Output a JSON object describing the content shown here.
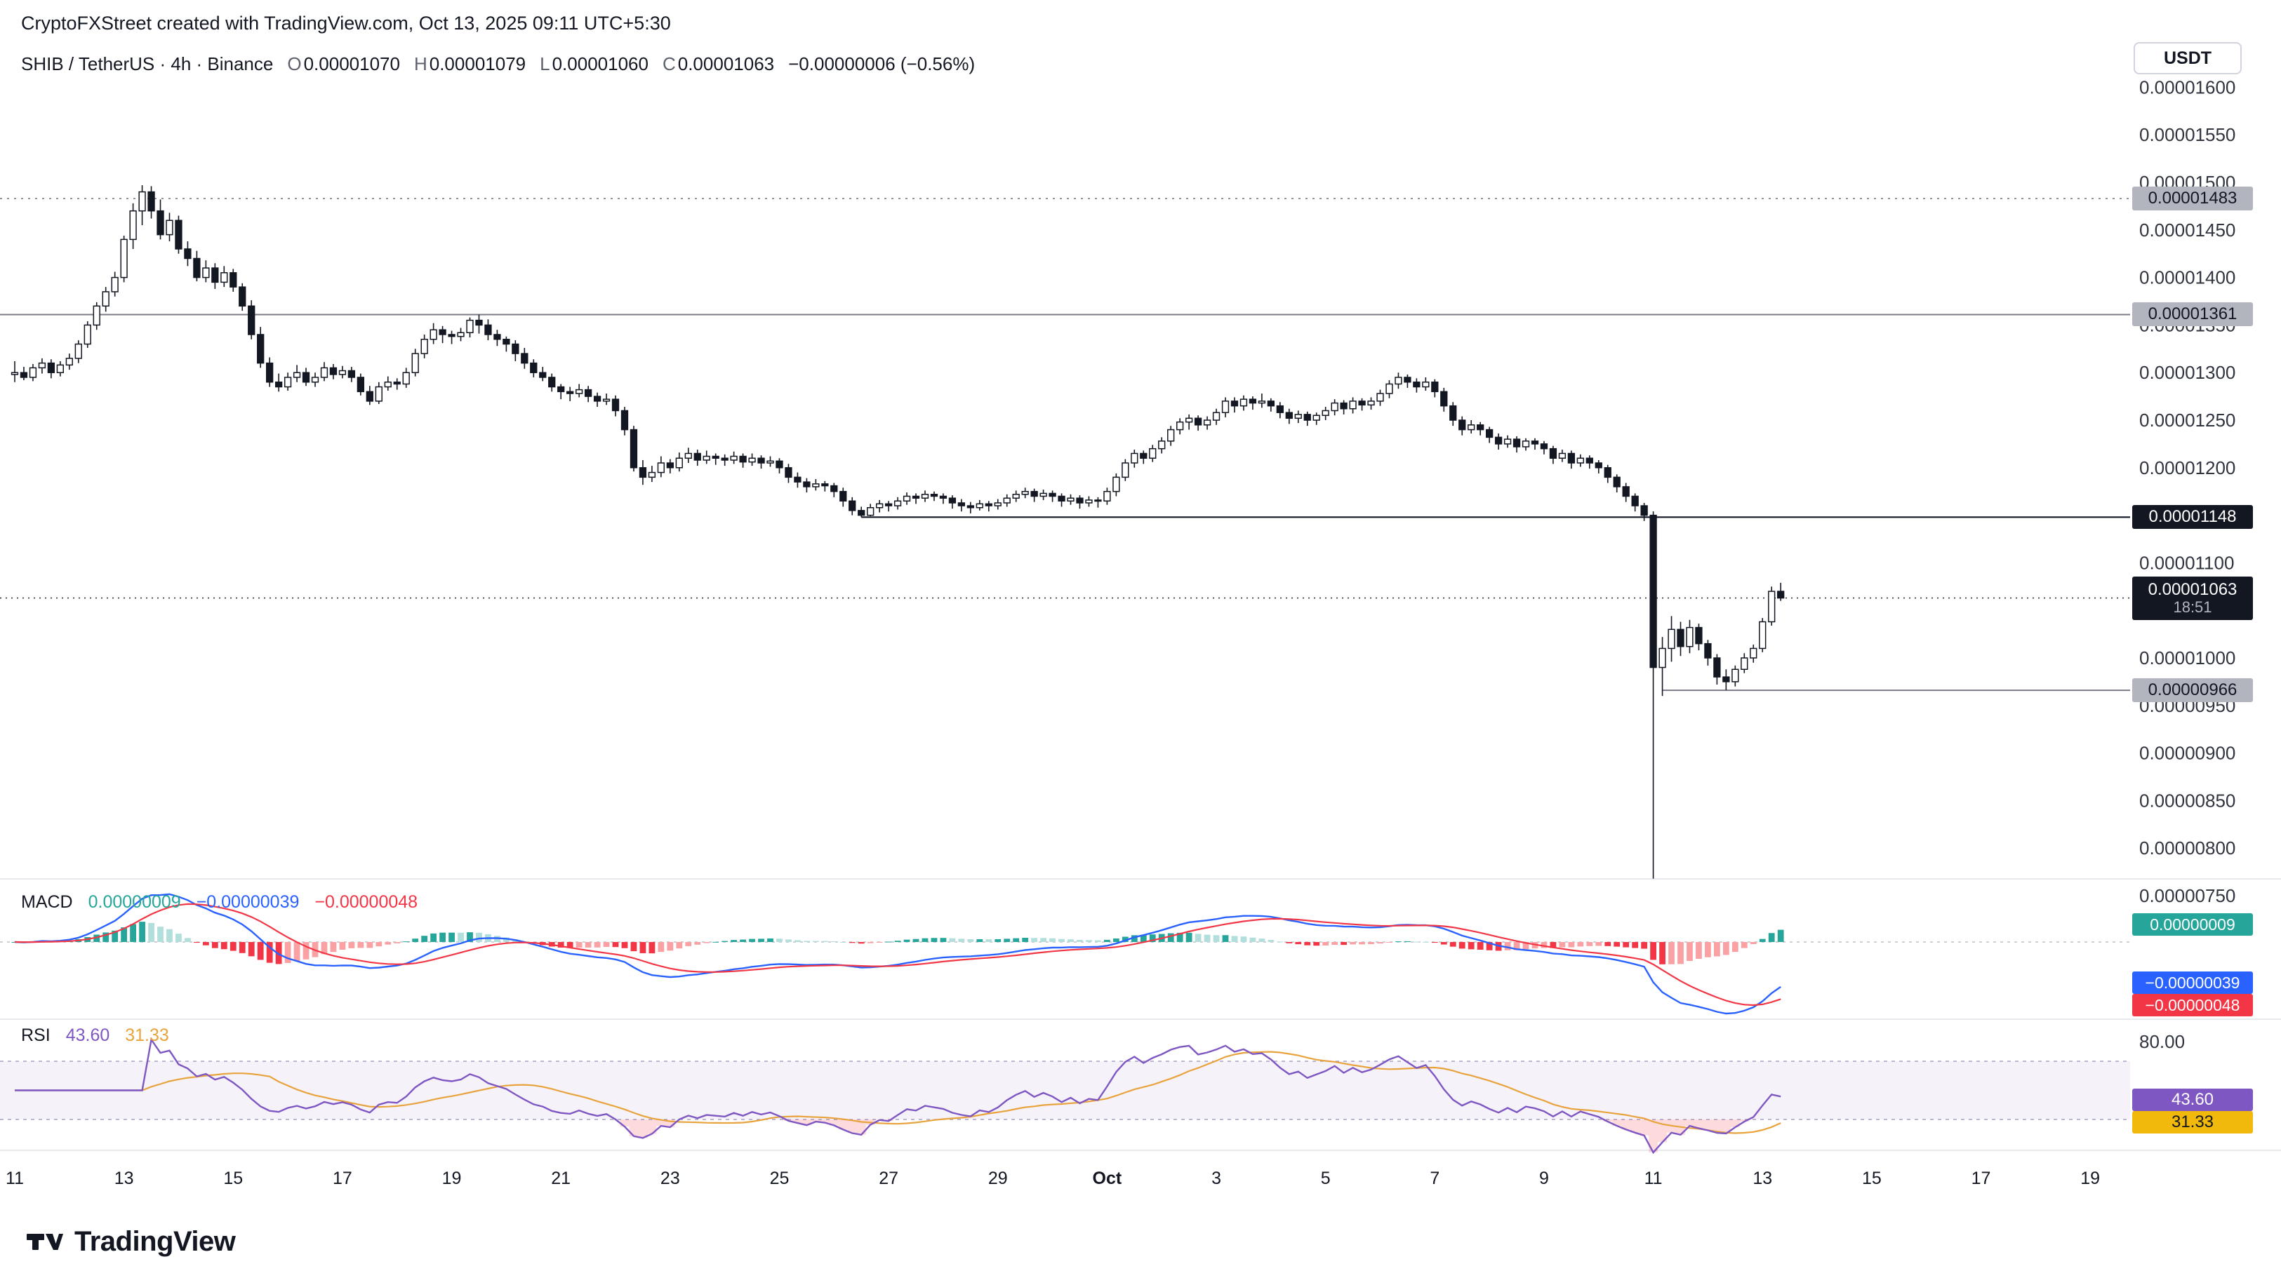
{
  "header": {
    "attribution": "CryptoFXStreet created with TradingView.com, Oct 13, 2025 09:11 UTC+5:30"
  },
  "symbol_bar": {
    "title": "SHIB / TetherUS · 4h · Binance",
    "fields": [
      {
        "label": "O",
        "value": "0.00001070"
      },
      {
        "label": "H",
        "value": "0.00001079"
      },
      {
        "label": "L",
        "value": "0.00001060"
      },
      {
        "label": "C",
        "value": "0.00001063"
      }
    ],
    "change": "−0.00000006 (−0.56%)"
  },
  "currency_button": "USDT",
  "logo": {
    "text": "TradingView"
  },
  "price_axis": {
    "badges": {
      "upper_gray": "0.00001483",
      "mid_gray": "0.00001361",
      "black": "0.00001148",
      "lower_gray": "0.00000966"
    },
    "current": {
      "value": "0.00001063",
      "countdown": "18:51"
    }
  },
  "macd_pane": {
    "label": "MACD",
    "hist_value": "0.00000009",
    "macd_value": "−0.00000039",
    "signal_value": "−0.00000048"
  },
  "rsi_pane": {
    "label": "RSI",
    "value": "43.60",
    "ma_value": "31.33",
    "axis_top_label": "80.00"
  },
  "chart_data": {
    "type": "candlestick",
    "title": "SHIB / TetherUS · 4h · Binance",
    "price_unit": "value × 1e-8 USDT",
    "x_range": [
      "Sep 11",
      "Oct 19"
    ],
    "y_axis_range_1e8": [
      750,
      1646
    ],
    "grid": "off",
    "legend_position": "none",
    "y_ticks": [
      {
        "label": "0.00001600",
        "v": 1600
      },
      {
        "label": "0.00001550",
        "v": 1550
      },
      {
        "label": "0.00001500",
        "v": 1500
      },
      {
        "label": "0.00001450",
        "v": 1450
      },
      {
        "label": "0.00001400",
        "v": 1400
      },
      {
        "label": "0.00001350",
        "v": 1350
      },
      {
        "label": "0.00001300",
        "v": 1300
      },
      {
        "label": "0.00001250",
        "v": 1250
      },
      {
        "label": "0.00001200",
        "v": 1200
      },
      {
        "label": "0.00001100",
        "v": 1100
      },
      {
        "label": "0.00001000",
        "v": 1000
      },
      {
        "label": "0.00000950",
        "v": 950
      },
      {
        "label": "0.00000900",
        "v": 900
      },
      {
        "label": "0.00000850",
        "v": 850
      },
      {
        "label": "0.00000800",
        "v": 800
      },
      {
        "label": "0.00000750",
        "v": 750
      }
    ],
    "x_ticks": [
      {
        "label": "11"
      },
      {
        "label": "13"
      },
      {
        "label": "15"
      },
      {
        "label": "17"
      },
      {
        "label": "19"
      },
      {
        "label": "21"
      },
      {
        "label": "23"
      },
      {
        "label": "25"
      },
      {
        "label": "27"
      },
      {
        "label": "29"
      },
      {
        "label": "Oct",
        "bold": true
      },
      {
        "label": "3"
      },
      {
        "label": "5"
      },
      {
        "label": "7"
      },
      {
        "label": "9"
      },
      {
        "label": "11"
      },
      {
        "label": "13"
      },
      {
        "label": "15"
      },
      {
        "label": "17"
      },
      {
        "label": "19"
      }
    ],
    "levels_1e8": {
      "dotted_gray": 1483,
      "solid_gray_upper": 1361,
      "solid_black": 1148,
      "solid_gray_lower": 966,
      "last_price": 1063
    },
    "last_candle": {
      "open": "0.00001070",
      "high": "0.00001079",
      "low": "0.00001060",
      "close": "0.00001063",
      "change": "−0.00000006",
      "change_pct": "−0.56%"
    },
    "indicators": {
      "macd": {
        "fast": 12,
        "slow": 26,
        "signal": 9,
        "last_hist": "0.00000009",
        "last_macd": "−0.00000039",
        "last_signal": "−0.00000048"
      },
      "rsi": {
        "length": 14,
        "last": 43.6,
        "ma_last": 31.33,
        "bands": [
          70,
          30
        ],
        "top_gridline": 80
      }
    },
    "candles_ohlc_1e8": [
      [
        1298,
        1312,
        1290,
        1300
      ],
      [
        1300,
        1306,
        1292,
        1295
      ],
      [
        1295,
        1309,
        1291,
        1305
      ],
      [
        1305,
        1315,
        1299,
        1310
      ],
      [
        1310,
        1314,
        1294,
        1300
      ],
      [
        1300,
        1312,
        1296,
        1308
      ],
      [
        1308,
        1320,
        1303,
        1315
      ],
      [
        1315,
        1334,
        1310,
        1330
      ],
      [
        1330,
        1354,
        1326,
        1350
      ],
      [
        1350,
        1374,
        1345,
        1370
      ],
      [
        1370,
        1390,
        1364,
        1385
      ],
      [
        1385,
        1406,
        1380,
        1400
      ],
      [
        1400,
        1444,
        1395,
        1440
      ],
      [
        1440,
        1478,
        1430,
        1470
      ],
      [
        1470,
        1497,
        1455,
        1490
      ],
      [
        1490,
        1496,
        1462,
        1470
      ],
      [
        1470,
        1482,
        1440,
        1445
      ],
      [
        1445,
        1468,
        1438,
        1460
      ],
      [
        1460,
        1465,
        1425,
        1430
      ],
      [
        1430,
        1438,
        1412,
        1420
      ],
      [
        1420,
        1428,
        1396,
        1400
      ],
      [
        1400,
        1418,
        1395,
        1410
      ],
      [
        1410,
        1415,
        1388,
        1395
      ],
      [
        1395,
        1412,
        1390,
        1405
      ],
      [
        1405,
        1409,
        1385,
        1390
      ],
      [
        1390,
        1394,
        1365,
        1370
      ],
      [
        1370,
        1376,
        1335,
        1340
      ],
      [
        1340,
        1348,
        1305,
        1310
      ],
      [
        1310,
        1316,
        1285,
        1290
      ],
      [
        1290,
        1299,
        1280,
        1285
      ],
      [
        1285,
        1300,
        1281,
        1295
      ],
      [
        1295,
        1308,
        1290,
        1300
      ],
      [
        1300,
        1305,
        1286,
        1290
      ],
      [
        1290,
        1300,
        1285,
        1295
      ],
      [
        1295,
        1311,
        1291,
        1305
      ],
      [
        1305,
        1309,
        1293,
        1298
      ],
      [
        1298,
        1307,
        1294,
        1302
      ],
      [
        1302,
        1306,
        1290,
        1295
      ],
      [
        1295,
        1299,
        1276,
        1280
      ],
      [
        1280,
        1286,
        1266,
        1270
      ],
      [
        1270,
        1290,
        1267,
        1285
      ],
      [
        1285,
        1296,
        1281,
        1290
      ],
      [
        1290,
        1294,
        1282,
        1288
      ],
      [
        1288,
        1305,
        1284,
        1300
      ],
      [
        1300,
        1325,
        1296,
        1320
      ],
      [
        1320,
        1340,
        1315,
        1335
      ],
      [
        1335,
        1352,
        1330,
        1345
      ],
      [
        1345,
        1349,
        1331,
        1340
      ],
      [
        1340,
        1344,
        1330,
        1338
      ],
      [
        1338,
        1347,
        1333,
        1342
      ],
      [
        1342,
        1358,
        1337,
        1355
      ],
      [
        1355,
        1361,
        1341,
        1350
      ],
      [
        1350,
        1356,
        1334,
        1340
      ],
      [
        1340,
        1345,
        1328,
        1335
      ],
      [
        1335,
        1338,
        1322,
        1330
      ],
      [
        1330,
        1334,
        1312,
        1320
      ],
      [
        1320,
        1326,
        1304,
        1310
      ],
      [
        1310,
        1314,
        1295,
        1300
      ],
      [
        1300,
        1306,
        1291,
        1295
      ],
      [
        1295,
        1299,
        1280,
        1285
      ],
      [
        1285,
        1288,
        1272,
        1280
      ],
      [
        1280,
        1285,
        1270,
        1278
      ],
      [
        1278,
        1288,
        1274,
        1282
      ],
      [
        1282,
        1286,
        1269,
        1275
      ],
      [
        1275,
        1279,
        1264,
        1270
      ],
      [
        1270,
        1278,
        1266,
        1272
      ],
      [
        1272,
        1276,
        1254,
        1260
      ],
      [
        1260,
        1264,
        1234,
        1240
      ],
      [
        1240,
        1244,
        1196,
        1200
      ],
      [
        1200,
        1208,
        1182,
        1190
      ],
      [
        1190,
        1202,
        1185,
        1195
      ],
      [
        1195,
        1212,
        1190,
        1205
      ],
      [
        1205,
        1209,
        1194,
        1200
      ],
      [
        1200,
        1216,
        1196,
        1210
      ],
      [
        1210,
        1221,
        1205,
        1215
      ],
      [
        1215,
        1219,
        1202,
        1208
      ],
      [
        1208,
        1218,
        1204,
        1212
      ],
      [
        1212,
        1215,
        1203,
        1210
      ],
      [
        1210,
        1214,
        1202,
        1208
      ],
      [
        1208,
        1217,
        1204,
        1212
      ],
      [
        1212,
        1215,
        1200,
        1206
      ],
      [
        1206,
        1215,
        1202,
        1210
      ],
      [
        1210,
        1213,
        1199,
        1205
      ],
      [
        1205,
        1212,
        1201,
        1207
      ],
      [
        1207,
        1210,
        1194,
        1200
      ],
      [
        1200,
        1204,
        1184,
        1190
      ],
      [
        1190,
        1195,
        1179,
        1185
      ],
      [
        1185,
        1189,
        1174,
        1180
      ],
      [
        1180,
        1188,
        1176,
        1183
      ],
      [
        1183,
        1186,
        1175,
        1181
      ],
      [
        1181,
        1184,
        1169,
        1175
      ],
      [
        1175,
        1179,
        1159,
        1165
      ],
      [
        1165,
        1169,
        1150,
        1155
      ],
      [
        1155,
        1159,
        1148,
        1150
      ],
      [
        1150,
        1162,
        1149,
        1158
      ],
      [
        1158,
        1166,
        1153,
        1162
      ],
      [
        1162,
        1165,
        1154,
        1160
      ],
      [
        1160,
        1169,
        1156,
        1165
      ],
      [
        1165,
        1174,
        1161,
        1170
      ],
      [
        1170,
        1173,
        1162,
        1168
      ],
      [
        1168,
        1176,
        1164,
        1172
      ],
      [
        1172,
        1175,
        1165,
        1170
      ],
      [
        1170,
        1173,
        1162,
        1168
      ],
      [
        1168,
        1171,
        1157,
        1163
      ],
      [
        1163,
        1167,
        1154,
        1160
      ],
      [
        1160,
        1164,
        1152,
        1158
      ],
      [
        1158,
        1166,
        1155,
        1162
      ],
      [
        1162,
        1165,
        1154,
        1160
      ],
      [
        1160,
        1167,
        1156,
        1163
      ],
      [
        1163,
        1172,
        1159,
        1168
      ],
      [
        1168,
        1176,
        1164,
        1172
      ],
      [
        1172,
        1179,
        1168,
        1175
      ],
      [
        1175,
        1178,
        1164,
        1170
      ],
      [
        1170,
        1177,
        1166,
        1173
      ],
      [
        1173,
        1176,
        1164,
        1170
      ],
      [
        1170,
        1173,
        1159,
        1165
      ],
      [
        1165,
        1172,
        1161,
        1168
      ],
      [
        1168,
        1171,
        1157,
        1163
      ],
      [
        1163,
        1170,
        1159,
        1166
      ],
      [
        1166,
        1169,
        1158,
        1165
      ],
      [
        1165,
        1179,
        1161,
        1175
      ],
      [
        1175,
        1194,
        1170,
        1190
      ],
      [
        1190,
        1209,
        1186,
        1205
      ],
      [
        1205,
        1219,
        1200,
        1215
      ],
      [
        1215,
        1218,
        1204,
        1210
      ],
      [
        1210,
        1224,
        1206,
        1220
      ],
      [
        1220,
        1232,
        1215,
        1228
      ],
      [
        1228,
        1244,
        1223,
        1240
      ],
      [
        1240,
        1252,
        1235,
        1248
      ],
      [
        1248,
        1256,
        1240,
        1252
      ],
      [
        1252,
        1255,
        1239,
        1245
      ],
      [
        1245,
        1254,
        1240,
        1250
      ],
      [
        1250,
        1262,
        1245,
        1258
      ],
      [
        1258,
        1274,
        1253,
        1270
      ],
      [
        1270,
        1274,
        1258,
        1265
      ],
      [
        1265,
        1276,
        1260,
        1272
      ],
      [
        1272,
        1275,
        1261,
        1268
      ],
      [
        1268,
        1278,
        1263,
        1270
      ],
      [
        1270,
        1273,
        1259,
        1265
      ],
      [
        1265,
        1269,
        1252,
        1258
      ],
      [
        1258,
        1262,
        1246,
        1252
      ],
      [
        1252,
        1260,
        1247,
        1256
      ],
      [
        1256,
        1259,
        1244,
        1250
      ],
      [
        1250,
        1258,
        1245,
        1255
      ],
      [
        1255,
        1264,
        1250,
        1260
      ],
      [
        1260,
        1272,
        1255,
        1268
      ],
      [
        1268,
        1271,
        1256,
        1262
      ],
      [
        1262,
        1274,
        1257,
        1270
      ],
      [
        1270,
        1273,
        1260,
        1266
      ],
      [
        1266,
        1274,
        1261,
        1270
      ],
      [
        1270,
        1282,
        1265,
        1278
      ],
      [
        1278,
        1292,
        1273,
        1288
      ],
      [
        1288,
        1300,
        1283,
        1295
      ],
      [
        1295,
        1298,
        1284,
        1290
      ],
      [
        1290,
        1294,
        1279,
        1285
      ],
      [
        1285,
        1295,
        1281,
        1290
      ],
      [
        1290,
        1293,
        1274,
        1280
      ],
      [
        1280,
        1284,
        1259,
        1265
      ],
      [
        1265,
        1269,
        1244,
        1250
      ],
      [
        1250,
        1254,
        1234,
        1240
      ],
      [
        1240,
        1250,
        1236,
        1245
      ],
      [
        1245,
        1248,
        1234,
        1240
      ],
      [
        1240,
        1243,
        1226,
        1232
      ],
      [
        1232,
        1236,
        1219,
        1225
      ],
      [
        1225,
        1234,
        1221,
        1230
      ],
      [
        1230,
        1233,
        1216,
        1222
      ],
      [
        1222,
        1231,
        1218,
        1228
      ],
      [
        1228,
        1231,
        1219,
        1225
      ],
      [
        1225,
        1228,
        1214,
        1220
      ],
      [
        1220,
        1223,
        1204,
        1210
      ],
      [
        1210,
        1219,
        1206,
        1215
      ],
      [
        1215,
        1218,
        1199,
        1205
      ],
      [
        1205,
        1214,
        1201,
        1210
      ],
      [
        1210,
        1213,
        1199,
        1205
      ],
      [
        1205,
        1208,
        1194,
        1200
      ],
      [
        1200,
        1203,
        1184,
        1190
      ],
      [
        1190,
        1193,
        1174,
        1180
      ],
      [
        1180,
        1184,
        1164,
        1170
      ],
      [
        1170,
        1173,
        1154,
        1160
      ],
      [
        1160,
        1163,
        1144,
        1150
      ],
      [
        1150,
        1154,
        768,
        990
      ],
      [
        990,
        1022,
        960,
        1010
      ],
      [
        1010,
        1044,
        996,
        1030
      ],
      [
        1030,
        1038,
        1002,
        1012
      ],
      [
        1012,
        1040,
        1005,
        1032
      ],
      [
        1032,
        1036,
        1008,
        1015
      ],
      [
        1015,
        1019,
        992,
        1000
      ],
      [
        1000,
        1004,
        972,
        980
      ],
      [
        980,
        988,
        966,
        975
      ],
      [
        975,
        992,
        970,
        988
      ],
      [
        988,
        1005,
        984,
        1000
      ],
      [
        1000,
        1014,
        995,
        1010
      ],
      [
        1010,
        1042,
        1006,
        1038
      ],
      [
        1038,
        1075,
        1034,
        1070
      ],
      [
        1070,
        1079,
        1060,
        1063
      ]
    ]
  }
}
